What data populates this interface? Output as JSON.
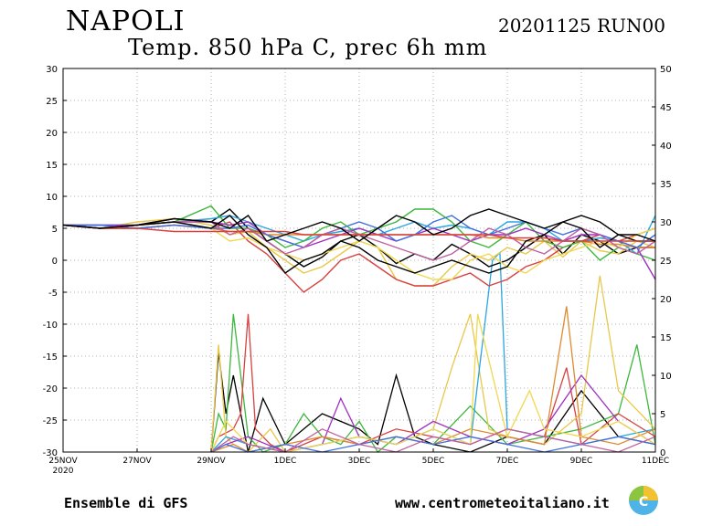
{
  "header": {
    "city": "NAPOLI",
    "run": "20201125 RUN00",
    "title": "Temp. 850 hPa C, prec 6h mm"
  },
  "footer": {
    "model": "Ensemble di GFS",
    "site": "www.centrometeoitaliano.it"
  },
  "chart_data": {
    "type": "line",
    "title": "Temp. 850 hPa C, prec 6h mm",
    "x_unit": "days from 25NOV 2020 00Z",
    "xlim": [
      0,
      16
    ],
    "x_ticks": [
      {
        "x": 0,
        "label": "25NOV",
        "sub": "2020"
      },
      {
        "x": 2,
        "label": "27NOV"
      },
      {
        "x": 4,
        "label": "29NOV"
      },
      {
        "x": 6,
        "label": "1DEC"
      },
      {
        "x": 8,
        "label": "3DEC"
      },
      {
        "x": 10,
        "label": "5DEC"
      },
      {
        "x": 12,
        "label": "7DEC"
      },
      {
        "x": 14,
        "label": "9DEC"
      },
      {
        "x": 16,
        "label": "11DEC"
      }
    ],
    "y_left": {
      "lim": [
        -30,
        30
      ],
      "ticks": [
        30,
        25,
        20,
        15,
        10,
        5,
        0,
        -5,
        -10,
        -15,
        -20,
        -25,
        -30
      ]
    },
    "y_right": {
      "lim": [
        0,
        50
      ],
      "ticks": [
        50,
        45,
        40,
        35,
        30,
        25,
        20,
        15,
        10,
        5,
        0
      ]
    },
    "grid": true,
    "colors": [
      "#000000",
      "#e8c84a",
      "#2aa6e0",
      "#d94040",
      "#3cb83c",
      "#a030c0",
      "#e08a30",
      "#f0d850",
      "#4070e0",
      "#c060a0"
    ],
    "temperature_series": [
      {
        "color": "#000000",
        "x": [
          0,
          1,
          2,
          3,
          4,
          4.5,
          5,
          5.5,
          6,
          6.5,
          7,
          7.5,
          8,
          8.5,
          9,
          9.5,
          10,
          10.5,
          11,
          11.5,
          12,
          12.5,
          13,
          13.5,
          14,
          14.5,
          15,
          15.5,
          16
        ],
        "y": [
          5.5,
          5,
          5.5,
          6.5,
          6,
          8,
          5,
          3,
          1,
          -1,
          0.5,
          3,
          4,
          2,
          -0.5,
          1,
          0,
          2.5,
          1,
          -1,
          0,
          2,
          4,
          1,
          4,
          3,
          1,
          2,
          2
        ]
      },
      {
        "color": "#e8c84a",
        "x": [
          0,
          1,
          2,
          3,
          4,
          4.5,
          5,
          5.5,
          6,
          6.5,
          7,
          7.5,
          8,
          8.5,
          9,
          9.5,
          10,
          10.5,
          11,
          11.5,
          12,
          12.5,
          13,
          13.5,
          14,
          14.5,
          15,
          15.5,
          16
        ],
        "y": [
          5.5,
          5,
          6,
          6.5,
          5.5,
          4,
          4.5,
          2,
          0,
          -2,
          -1,
          1,
          3,
          2,
          -3,
          -4,
          -4,
          -1,
          1,
          0,
          2,
          1,
          3,
          0.5,
          3,
          1.5,
          1,
          3,
          2
        ]
      },
      {
        "color": "#2aa6e0",
        "x": [
          0,
          1,
          2,
          3,
          4,
          4.5,
          5,
          5.5,
          6,
          6.5,
          7,
          7.5,
          8,
          8.5,
          9,
          9.5,
          10,
          10.5,
          11,
          11.5,
          12,
          12.5,
          13,
          13.5,
          14,
          14.5,
          15,
          15.5,
          16
        ],
        "y": [
          5.5,
          5.5,
          5.5,
          6,
          6.5,
          7,
          6,
          5,
          4,
          3,
          4,
          4.5,
          5,
          4,
          5,
          6,
          5,
          5.5,
          5,
          4,
          6,
          6,
          5,
          3,
          3,
          3.5,
          3,
          1,
          7
        ]
      },
      {
        "color": "#d94040",
        "x": [
          0,
          1,
          2,
          3,
          4,
          4.5,
          5,
          5.5,
          6,
          6.5,
          7,
          7.5,
          8,
          8.5,
          9,
          9.5,
          10,
          10.5,
          11,
          11.5,
          12,
          12.5,
          13,
          13.5,
          14,
          14.5,
          15,
          15.5,
          16
        ],
        "y": [
          5.5,
          5,
          5,
          5.5,
          5,
          6,
          3,
          1,
          -2,
          -5,
          -3,
          0,
          1,
          -1,
          -3,
          -4,
          -4,
          -3,
          -2,
          -4,
          -3,
          -1,
          0,
          2,
          3,
          4,
          3,
          4,
          5
        ]
      },
      {
        "color": "#3cb83c",
        "x": [
          0,
          1,
          2,
          3,
          4,
          4.5,
          5,
          5.5,
          6,
          6.5,
          7,
          7.5,
          8,
          8.5,
          9,
          9.5,
          10,
          10.5,
          11,
          11.5,
          12,
          12.5,
          13,
          13.5,
          14,
          14.5,
          15,
          15.5,
          16
        ],
        "y": [
          5.5,
          5,
          5.5,
          6,
          8.5,
          5,
          5,
          4,
          2,
          3,
          5,
          6,
          4,
          5,
          6,
          8,
          8,
          6,
          3,
          2,
          4,
          6,
          3,
          2,
          3,
          0,
          2,
          1,
          0
        ]
      },
      {
        "color": "#a030c0",
        "x": [
          0,
          1,
          2,
          3,
          4,
          4.5,
          5,
          5.5,
          6,
          6.5,
          7,
          7.5,
          8,
          8.5,
          9,
          9.5,
          10,
          10.5,
          11,
          11.5,
          12,
          12.5,
          13,
          13.5,
          14,
          14.5,
          15,
          15.5,
          16
        ],
        "y": [
          5.5,
          5.5,
          5.5,
          6,
          6,
          5.5,
          6,
          4,
          3,
          2,
          3,
          4,
          5,
          4,
          3,
          4,
          5,
          4,
          3,
          4,
          4,
          5,
          4,
          3,
          4,
          4,
          3,
          2,
          -3
        ]
      },
      {
        "color": "#e08a30",
        "x": [
          0,
          1,
          2,
          3,
          4,
          4.5,
          5,
          5.5,
          6,
          6.5,
          7,
          7.5,
          8,
          8.5,
          9,
          9.5,
          10,
          10.5,
          11,
          11.5,
          12,
          12.5,
          13,
          13.5,
          14,
          14.5,
          15,
          15.5,
          16
        ],
        "y": [
          5.5,
          5,
          5,
          5.5,
          5,
          4.5,
          4.5,
          4,
          4,
          4,
          4,
          4,
          4,
          4,
          4,
          4,
          4,
          4,
          4,
          3.5,
          3.5,
          3,
          3,
          3,
          3,
          2.5,
          2.5,
          2,
          2
        ]
      },
      {
        "color": "#f0d850",
        "x": [
          0,
          1,
          2,
          3,
          4,
          4.5,
          5,
          5.5,
          6,
          6.5,
          7,
          7.5,
          8,
          8.5,
          9,
          9.5,
          10,
          10.5,
          11,
          11.5,
          12,
          12.5,
          13,
          13.5,
          14,
          14.5,
          15,
          15.5,
          16
        ],
        "y": [
          5.5,
          5,
          5.5,
          6,
          5,
          3,
          3.5,
          2,
          1,
          0,
          1,
          2,
          3,
          2,
          0,
          -2,
          -3,
          -3,
          0,
          1,
          -1,
          -2,
          0,
          1,
          2,
          3,
          2,
          4,
          5
        ]
      },
      {
        "color": "#4070e0",
        "x": [
          0,
          1,
          2,
          3,
          4,
          4.5,
          5,
          5.5,
          6,
          6.5,
          7,
          7.5,
          8,
          8.5,
          9,
          9.5,
          10,
          10.5,
          11,
          11.5,
          12,
          12.5,
          13,
          13.5,
          14,
          14.5,
          15,
          15.5,
          16
        ],
        "y": [
          5.5,
          5.5,
          5,
          5.5,
          5,
          5,
          5.5,
          4,
          3,
          2,
          4,
          5,
          6,
          5,
          3,
          4,
          6,
          7,
          5,
          4,
          5,
          6,
          5,
          4,
          5,
          4,
          3,
          2,
          4
        ]
      },
      {
        "color": "#c060a0",
        "x": [
          0,
          1,
          2,
          3,
          4,
          4.5,
          5,
          5.5,
          6,
          6.5,
          7,
          7.5,
          8,
          8.5,
          9,
          9.5,
          10,
          10.5,
          11,
          11.5,
          12,
          12.5,
          13,
          13.5,
          14,
          14.5,
          15,
          15.5,
          16
        ],
        "y": [
          5.5,
          5,
          5.5,
          6,
          6,
          4,
          5,
          3,
          1,
          2,
          4,
          5,
          4,
          3,
          2,
          1,
          0,
          1,
          3,
          5,
          4,
          2,
          1,
          3,
          5,
          4,
          2,
          1,
          3
        ]
      },
      {
        "color": "#000000",
        "x": [
          0,
          1,
          2,
          3,
          4,
          4.5,
          5,
          5.5,
          6,
          6.5,
          7,
          7.5,
          8,
          8.5,
          9,
          9.5,
          10,
          10.5,
          11,
          11.5,
          12,
          12.5,
          13,
          13.5,
          14,
          14.5,
          15,
          15.5,
          16
        ],
        "y": [
          5.5,
          5,
          5.5,
          6,
          5,
          7,
          4,
          2,
          -2,
          0,
          1,
          3,
          2,
          0,
          -1,
          -2,
          -1,
          0,
          -1,
          -2,
          -1,
          3,
          4,
          6,
          5,
          2,
          4,
          3,
          3
        ]
      },
      {
        "color": "#d94040",
        "x": [
          0,
          1,
          2,
          3,
          4,
          4.5,
          5,
          5.5,
          6,
          6.5,
          7,
          7.5,
          8,
          8.5,
          9,
          9.5,
          10,
          10.5,
          11,
          11.5,
          12,
          12.5,
          13,
          13.5,
          14,
          14.5,
          15,
          15.5,
          16
        ],
        "y": [
          5.5,
          5,
          5,
          4.5,
          4.5,
          4.5,
          4.5,
          4.5,
          4.5,
          4,
          4,
          4,
          4,
          4,
          4,
          4,
          4,
          4,
          4,
          4,
          3.5,
          3.5,
          3.5,
          3,
          3,
          3,
          3,
          3,
          3
        ]
      },
      {
        "color": "#000000",
        "x": [
          0,
          1,
          2,
          3,
          4,
          4.5,
          5,
          5.5,
          6,
          6.5,
          7,
          7.5,
          8,
          8.5,
          9,
          9.5,
          10,
          10.5,
          11,
          11.5,
          12,
          12.5,
          13,
          13.5,
          14,
          14.5,
          15,
          15.5,
          16
        ],
        "y": [
          5.5,
          5,
          5.5,
          6.5,
          6,
          5,
          7,
          3,
          4,
          5,
          6,
          5,
          3,
          5,
          7,
          6,
          4,
          5,
          7,
          8,
          7,
          6,
          5,
          6,
          7,
          6,
          4,
          4,
          3
        ]
      }
    ],
    "precip_series": [
      {
        "color": "#000000",
        "x": [
          4,
          4.2,
          4.4,
          4.6,
          5,
          5.4,
          6,
          7,
          8,
          8.5,
          9,
          9.5,
          10,
          11,
          12,
          13,
          14,
          15,
          16
        ],
        "y": [
          0,
          13,
          5,
          10,
          0,
          7,
          1,
          5,
          3,
          1,
          10,
          2,
          1,
          0,
          2,
          1,
          8,
          2,
          1
        ]
      },
      {
        "color": "#3cb83c",
        "x": [
          4,
          4.2,
          4.4,
          4.6,
          5,
          5.4,
          6,
          6.5,
          7,
          7.5,
          8,
          8.5,
          9,
          10,
          11,
          12,
          13,
          14,
          15,
          15.5,
          16
        ],
        "y": [
          0,
          5,
          3,
          18,
          2,
          0,
          1,
          5,
          2,
          1,
          4,
          0,
          2,
          1,
          6,
          1,
          2,
          3,
          5,
          14,
          1
        ]
      },
      {
        "color": "#d94040",
        "x": [
          4,
          4.2,
          4.6,
          4.8,
          5,
          5.2,
          5.6,
          6,
          7,
          8,
          9,
          10,
          11,
          12,
          13,
          13.6,
          14,
          15,
          16
        ],
        "y": [
          0,
          2,
          3,
          5,
          18,
          3,
          1,
          0,
          2,
          1,
          3,
          2,
          1,
          3,
          2,
          11,
          1,
          5,
          2
        ]
      },
      {
        "color": "#e8c84a",
        "x": [
          4,
          4.2,
          4.4,
          4.6,
          5,
          5.6,
          6,
          7,
          8,
          9,
          10,
          10.5,
          11,
          11.5,
          12,
          13,
          14,
          14.5,
          15,
          16
        ],
        "y": [
          0,
          14,
          2,
          1,
          0,
          3,
          0,
          1,
          2,
          1,
          3,
          11,
          18,
          3,
          2,
          1,
          5,
          23,
          8,
          3
        ]
      },
      {
        "color": "#2aa6e0",
        "x": [
          4,
          4.4,
          5,
          6,
          7,
          8,
          9,
          10,
          11,
          11.6,
          11.8,
          12,
          13,
          14,
          15,
          16
        ],
        "y": [
          0,
          2,
          1,
          0,
          1,
          2,
          1,
          3,
          1,
          25,
          26,
          3,
          2,
          1,
          2,
          3
        ]
      },
      {
        "color": "#a030c0",
        "x": [
          4,
          4.4,
          5,
          6,
          7,
          7.5,
          8,
          9,
          10,
          11,
          12,
          13,
          14,
          15,
          16
        ],
        "y": [
          0,
          1,
          2,
          0,
          1,
          7,
          2,
          1,
          4,
          2,
          1,
          3,
          10,
          4,
          1
        ]
      },
      {
        "color": "#e08a30",
        "x": [
          4,
          4.6,
          5,
          6,
          7,
          8,
          9,
          10,
          11,
          12,
          13,
          13.6,
          14,
          15,
          16
        ],
        "y": [
          0,
          1,
          0,
          1,
          2,
          1,
          2,
          1,
          3,
          2,
          1,
          19,
          2,
          1,
          3
        ]
      },
      {
        "color": "#f0d850",
        "x": [
          4,
          4.4,
          5,
          6,
          7,
          8,
          9,
          10,
          11,
          11.2,
          12,
          12.6,
          13,
          14,
          15,
          16
        ],
        "y": [
          0,
          4,
          1,
          0,
          1,
          2,
          1,
          3,
          1,
          18,
          2,
          8,
          3,
          2,
          4,
          1
        ]
      },
      {
        "color": "#4070e0",
        "x": [
          4,
          4.4,
          5,
          6,
          7,
          8,
          9,
          10,
          11,
          12,
          13,
          14,
          15,
          16
        ],
        "y": [
          0,
          1,
          0,
          1,
          0,
          1,
          2,
          1,
          2,
          1,
          0,
          1,
          2,
          1
        ]
      },
      {
        "color": "#c060a0",
        "x": [
          4,
          4.6,
          5,
          6,
          7,
          8,
          9,
          10,
          11,
          12,
          13,
          14,
          15,
          16
        ],
        "y": [
          0,
          2,
          1,
          0,
          3,
          1,
          0,
          2,
          1,
          3,
          2,
          1,
          0,
          2
        ]
      }
    ]
  }
}
